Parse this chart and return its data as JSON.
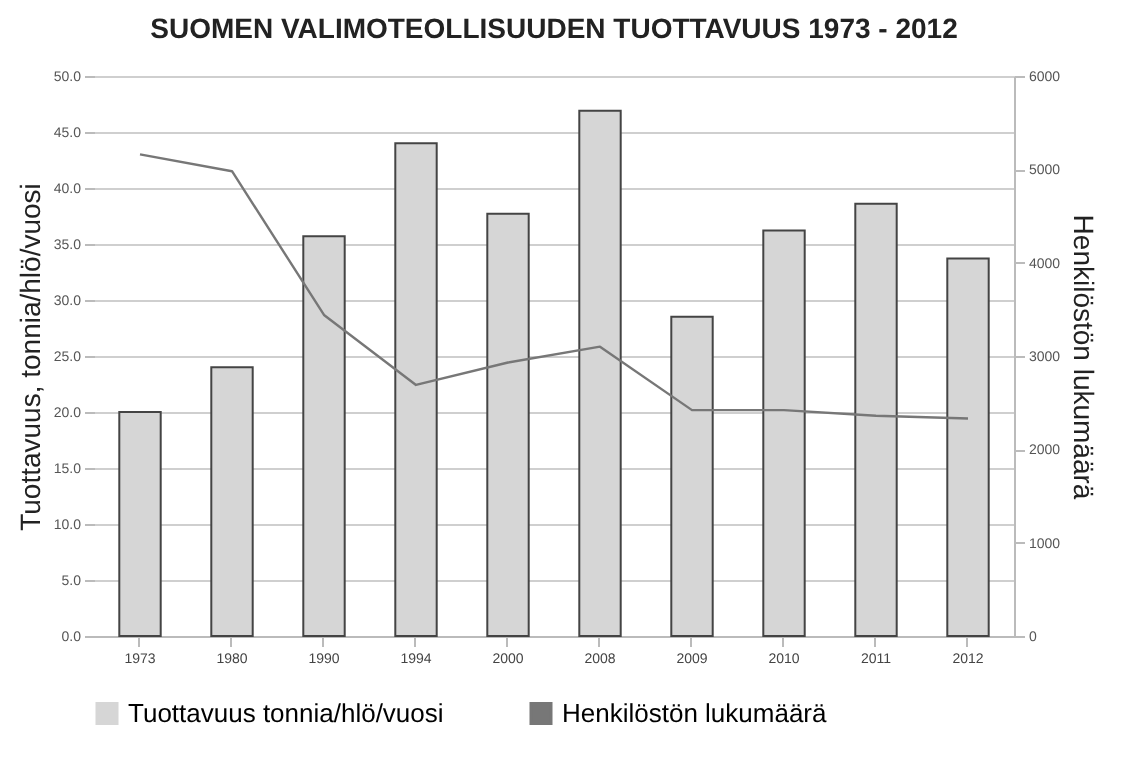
{
  "chart_data": {
    "type": "bar",
    "title": "SUOMEN VALIMOTEOLLISUUDEN TUOTTAVUUS 1973 - 2012",
    "ylabel": "Tuottavuus, tonnia/hlö/vuosi",
    "y2label": "Henkilöstön lukumäärä",
    "categories": [
      "1973",
      "1980",
      "1990",
      "1994",
      "2000",
      "2008",
      "2009",
      "2010",
      "2011",
      "2012"
    ],
    "series": [
      {
        "name": "Tuottavuus tonnia/hlö/vuosi",
        "color": "#d6d6d6",
        "values": [
          20.0,
          24.0,
          35.7,
          44.0,
          37.7,
          46.9,
          28.5,
          36.2,
          38.6,
          33.7
        ]
      },
      {
        "name": "Henkilöstön lukumäärä",
        "type": "line",
        "axis": "y2",
        "color": "#777777",
        "values": [
          5160,
          4980,
          3440,
          2690,
          2930,
          3100,
          2420,
          2420,
          2360,
          2330
        ]
      }
    ],
    "ylim": [
      0,
      50
    ],
    "yticks": [
      {
        "value": 0,
        "label": "0.0"
      },
      {
        "value": 5,
        "label": "5.0"
      },
      {
        "value": 10,
        "label": "10.0"
      },
      {
        "value": 15,
        "label": "15.0"
      },
      {
        "value": 20,
        "label": "20.0"
      },
      {
        "value": 25,
        "label": "25.0"
      },
      {
        "value": 30,
        "label": "30.0"
      },
      {
        "value": 35,
        "label": "35.0"
      },
      {
        "value": 40,
        "label": "40.0"
      },
      {
        "value": 45,
        "label": "45.0"
      },
      {
        "value": 50,
        "label": "50.0"
      }
    ],
    "y2lim": [
      0,
      6000
    ],
    "y2ticks": [
      0,
      1000,
      2000,
      3000,
      4000,
      5000,
      6000
    ],
    "grid": "y",
    "legend": "bottom"
  }
}
